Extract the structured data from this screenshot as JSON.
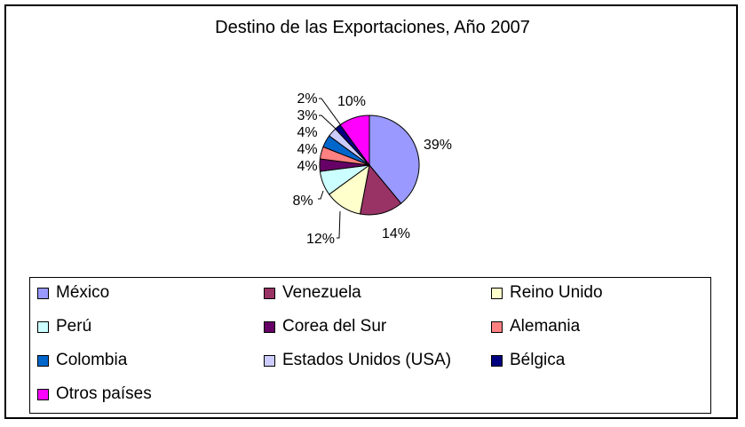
{
  "chart_data": {
    "type": "pie",
    "title": "Destino de las Exportaciones, Año 2007",
    "legend_position": "bottom",
    "slices": [
      {
        "label": "México",
        "value": 39,
        "display": "39%",
        "color": "#9999FF"
      },
      {
        "label": "Venezuela",
        "value": 14,
        "display": "14%",
        "color": "#993366"
      },
      {
        "label": "Reino Unido",
        "value": 12,
        "display": "12%",
        "color": "#FFFFCC"
      },
      {
        "label": "Perú",
        "value": 8,
        "display": "8%",
        "color": "#CCFFFF"
      },
      {
        "label": "Corea del Sur",
        "value": 4,
        "display": "4%",
        "color": "#660066"
      },
      {
        "label": "Alemania",
        "value": 4,
        "display": "4%",
        "color": "#FF8080"
      },
      {
        "label": "Colombia",
        "value": 4,
        "display": "4%",
        "color": "#0066CC"
      },
      {
        "label": "Estados Unidos (USA)",
        "value": 3,
        "display": "3%",
        "color": "#CCCCFF"
      },
      {
        "label": "Bélgica",
        "value": 2,
        "display": "2%",
        "color": "#000080"
      },
      {
        "label": "Otros países",
        "value": 10,
        "display": "10%",
        "color": "#FF00FF"
      }
    ]
  }
}
